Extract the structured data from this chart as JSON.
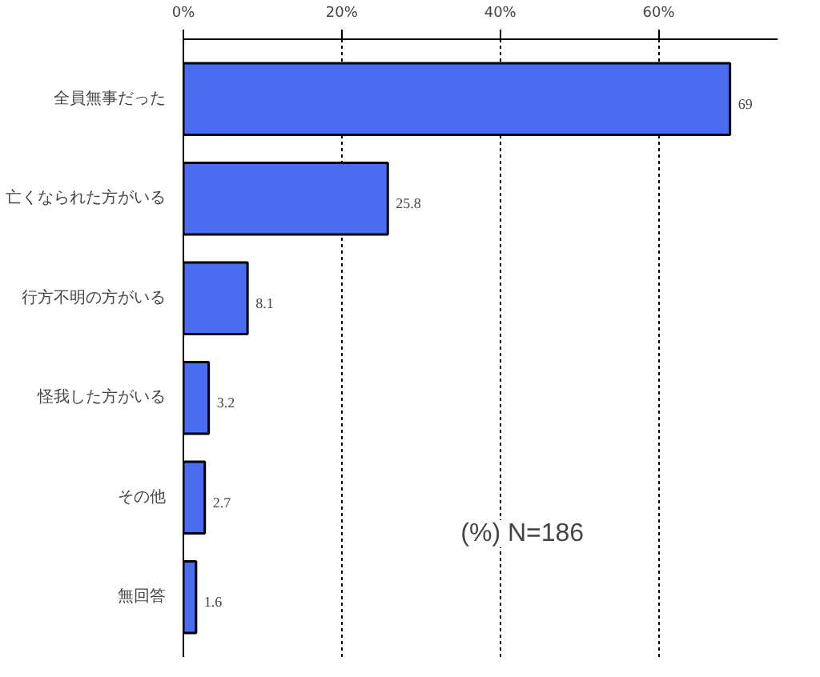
{
  "chart_data": {
    "type": "bar",
    "orientation": "horizontal",
    "categories": [
      "全員無事だった",
      "亡くなられた方がいる",
      "行方不明の方がいる",
      "怪我した方がいる",
      "その他",
      "無回答"
    ],
    "values": [
      69,
      25.8,
      8.1,
      3.2,
      2.7,
      1.6
    ],
    "value_labels": [
      "69",
      "25.8",
      "8.1",
      "3.2",
      "2.7",
      "1.6"
    ],
    "color": "#4a6cf0",
    "xlim": [
      0,
      75
    ],
    "xticks": [
      {
        "value": 0,
        "label": "0%"
      },
      {
        "value": 20,
        "label": "20%"
      },
      {
        "value": 40,
        "label": "40%"
      },
      {
        "value": 60,
        "label": "60%"
      }
    ],
    "grid": "x",
    "annotations": [
      "(%) N=186"
    ]
  }
}
